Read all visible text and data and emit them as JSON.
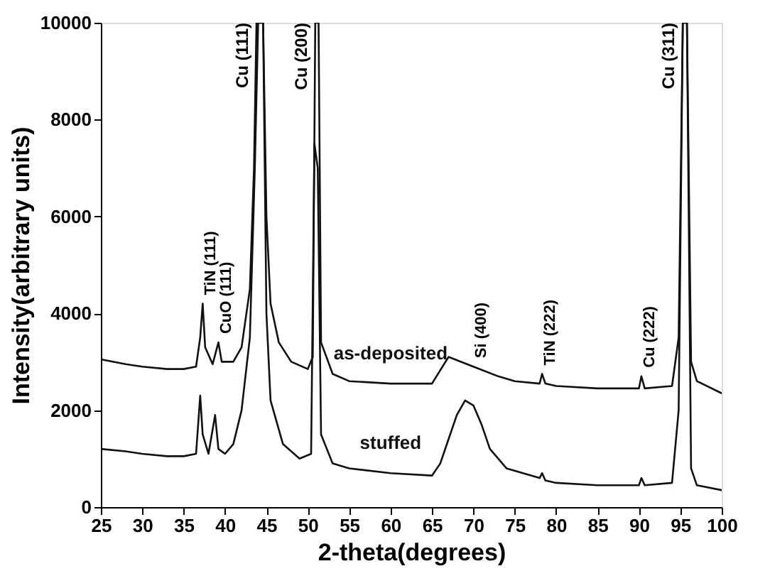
{
  "chart_data": {
    "type": "line",
    "xlabel": "2-theta(degrees)",
    "ylabel": "Intensity(arbitrary units)",
    "xlim": [
      25,
      100
    ],
    "xticks": [
      25,
      30,
      35,
      40,
      45,
      50,
      55,
      60,
      65,
      70,
      75,
      80,
      85,
      90,
      95,
      100
    ],
    "ylim": [
      0,
      10000
    ],
    "yticks": [
      0,
      2000,
      4000,
      6000,
      8000,
      10000
    ],
    "legend": false,
    "grid": false,
    "marker": "none",
    "line_style": "solid",
    "series": [
      {
        "name": "as-deposited",
        "color": "#111111",
        "x": [
          25,
          28,
          30,
          33,
          35,
          36.5,
          37,
          37.3,
          37.6,
          38.5,
          39.2,
          39.6,
          41,
          42,
          43,
          43.5,
          43.8,
          44.6,
          45,
          45.5,
          46.5,
          48,
          50,
          50.6,
          50.9,
          51.3,
          51.6,
          53,
          55,
          60,
          65,
          67,
          70,
          73,
          75,
          78,
          78.3,
          78.7,
          80,
          85,
          90,
          90.3,
          90.7,
          94,
          94.8,
          95.3,
          95.8,
          96.3,
          97,
          100
        ],
        "values": [
          3050,
          2950,
          2900,
          2850,
          2850,
          2900,
          3500,
          4200,
          3300,
          2950,
          3400,
          3000,
          3000,
          3300,
          4500,
          7000,
          10000,
          10000,
          6000,
          4200,
          3400,
          3000,
          2850,
          3100,
          10000,
          10000,
          3400,
          2750,
          2600,
          2550,
          2550,
          3100,
          2900,
          2700,
          2600,
          2550,
          2750,
          2550,
          2500,
          2450,
          2450,
          2700,
          2450,
          2500,
          3500,
          10000,
          10000,
          3000,
          2600,
          2350
        ]
      },
      {
        "name": "stuffed",
        "color": "#111111",
        "x": [
          25,
          28,
          30,
          33,
          35,
          36.5,
          37,
          37.3,
          38,
          38.8,
          39.2,
          40,
          41,
          42,
          43,
          43.6,
          44,
          44.6,
          45,
          45.5,
          47,
          49,
          50.4,
          50.8,
          51.2,
          51.6,
          53,
          55,
          60,
          65,
          66,
          67,
          68,
          69,
          70,
          71,
          72,
          74,
          78,
          78.3,
          78.7,
          80,
          85,
          90,
          90.3,
          90.7,
          94,
          94.8,
          95.3,
          95.8,
          96.3,
          97,
          100
        ],
        "values": [
          1200,
          1150,
          1100,
          1050,
          1050,
          1100,
          2300,
          1500,
          1100,
          1900,
          1200,
          1100,
          1300,
          2000,
          3500,
          7000,
          10000,
          10000,
          4000,
          2200,
          1300,
          1000,
          1100,
          7500,
          7000,
          1500,
          900,
          800,
          700,
          650,
          900,
          1400,
          1900,
          2200,
          2100,
          1700,
          1200,
          800,
          600,
          700,
          550,
          500,
          450,
          450,
          600,
          450,
          500,
          2000,
          10000,
          10000,
          800,
          450,
          350
        ]
      }
    ],
    "annotations": [
      {
        "text": "TiN (111)",
        "x": 37.3,
        "y": 4200
      },
      {
        "text": "CuO (111)",
        "x": 39.2,
        "y": 3400
      },
      {
        "text": "Cu (111)",
        "x": 43.8,
        "y": 10000
      },
      {
        "text": "Cu (200)",
        "x": 50.9,
        "y": 10000
      },
      {
        "text": "Si (400)",
        "x": 70,
        "y": 2900
      },
      {
        "text": "TiN (222)",
        "x": 78.3,
        "y": 2750
      },
      {
        "text": "Cu (222)",
        "x": 90.3,
        "y": 2700
      },
      {
        "text": "Cu (311)",
        "x": 95.3,
        "y": 10000
      }
    ]
  }
}
